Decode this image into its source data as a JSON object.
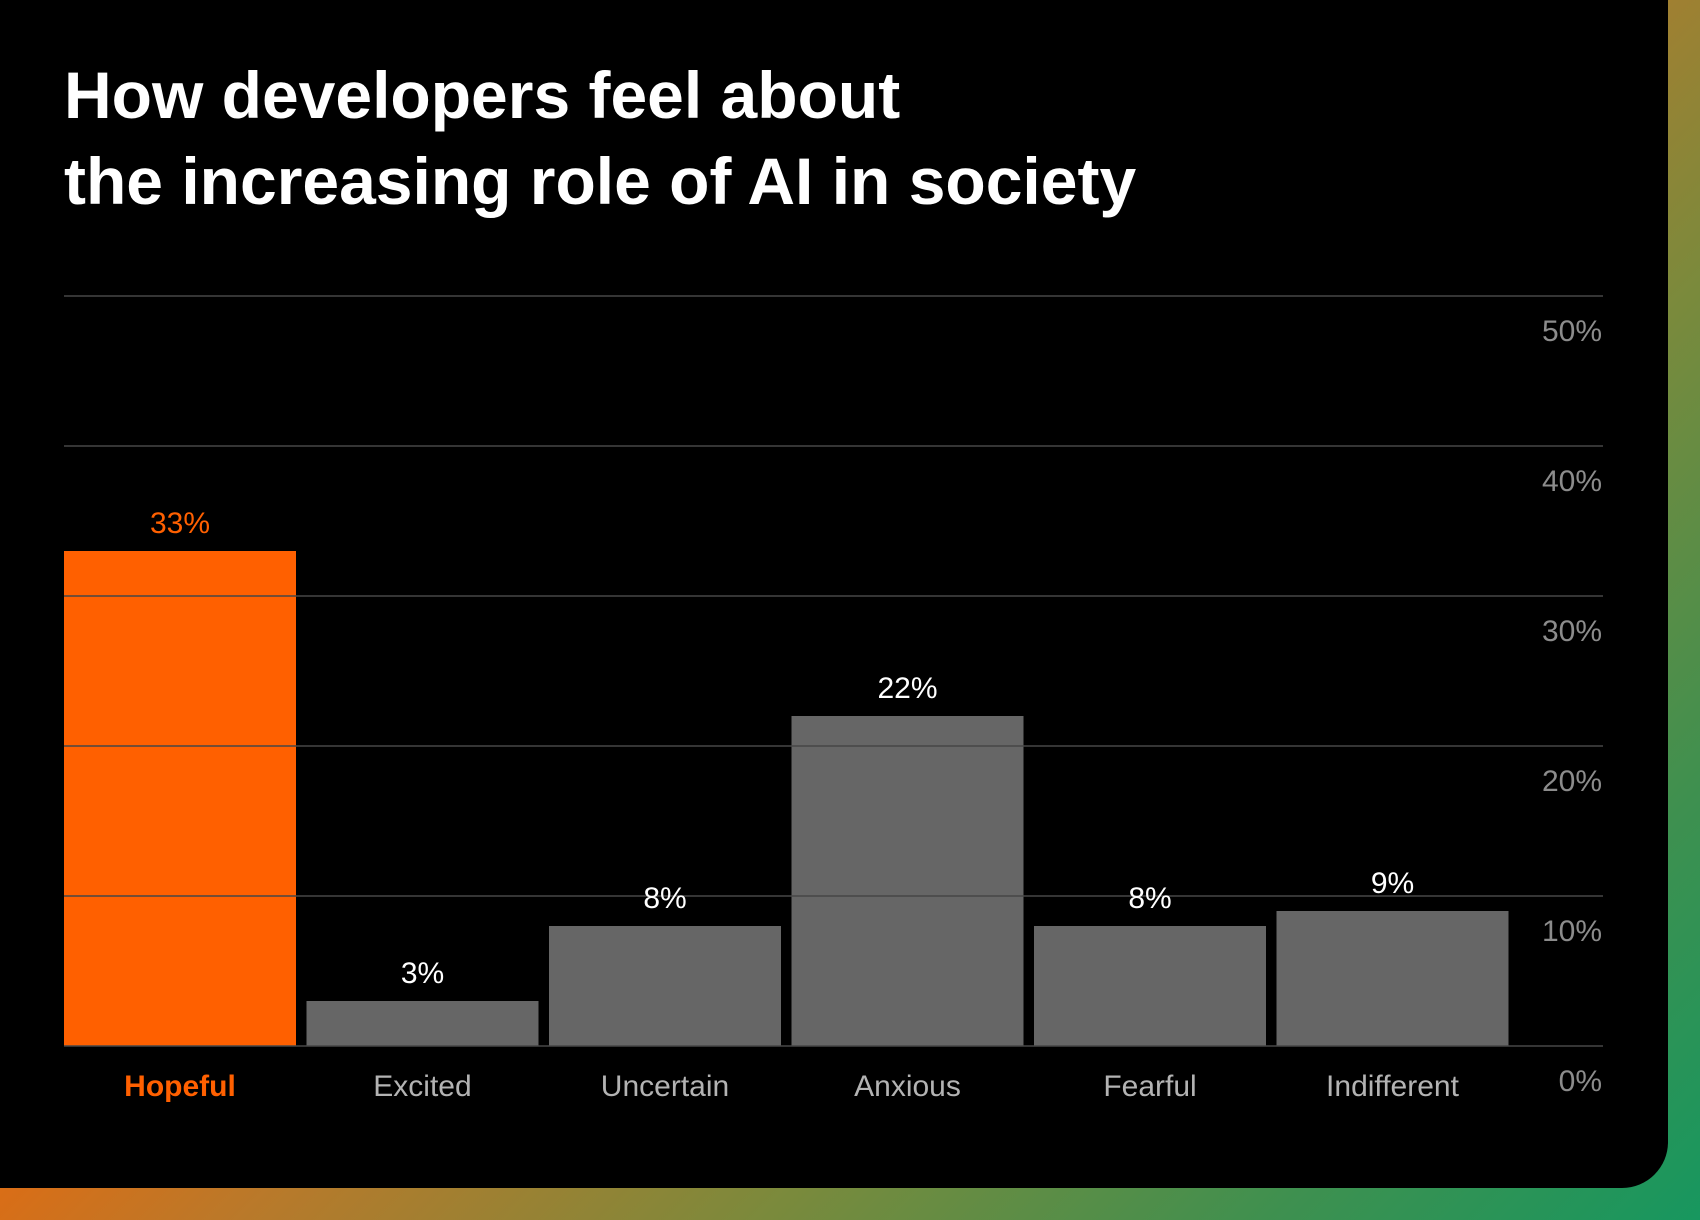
{
  "colors": {
    "highlight": "#ff6000",
    "bar": "#666666",
    "background": "#000000",
    "gradient_start": "#ff6000",
    "gradient_end": "#17975f"
  },
  "chart_data": {
    "type": "bar",
    "title_lines": [
      "How developers feel about",
      "the increasing role of AI in society"
    ],
    "title": "How developers feel about the increasing role of AI in society",
    "xlabel": "",
    "ylabel": "",
    "categories": [
      "Hopeful",
      "Excited",
      "Uncertain",
      "Anxious",
      "Fearful",
      "Indifferent"
    ],
    "values": [
      33,
      3,
      8,
      22,
      8,
      9
    ],
    "value_labels": [
      "33%",
      "3%",
      "8%",
      "22%",
      "8%",
      "9%"
    ],
    "highlighted_category": "Hopeful",
    "unit": "%",
    "ylim": [
      0,
      50
    ],
    "yticks": [
      0,
      10,
      20,
      30,
      40,
      50
    ],
    "ytick_labels": [
      "0%",
      "10%",
      "20%",
      "30%",
      "40%",
      "50%"
    ],
    "y_axis_position": "right",
    "grid": true,
    "legend": "none"
  }
}
